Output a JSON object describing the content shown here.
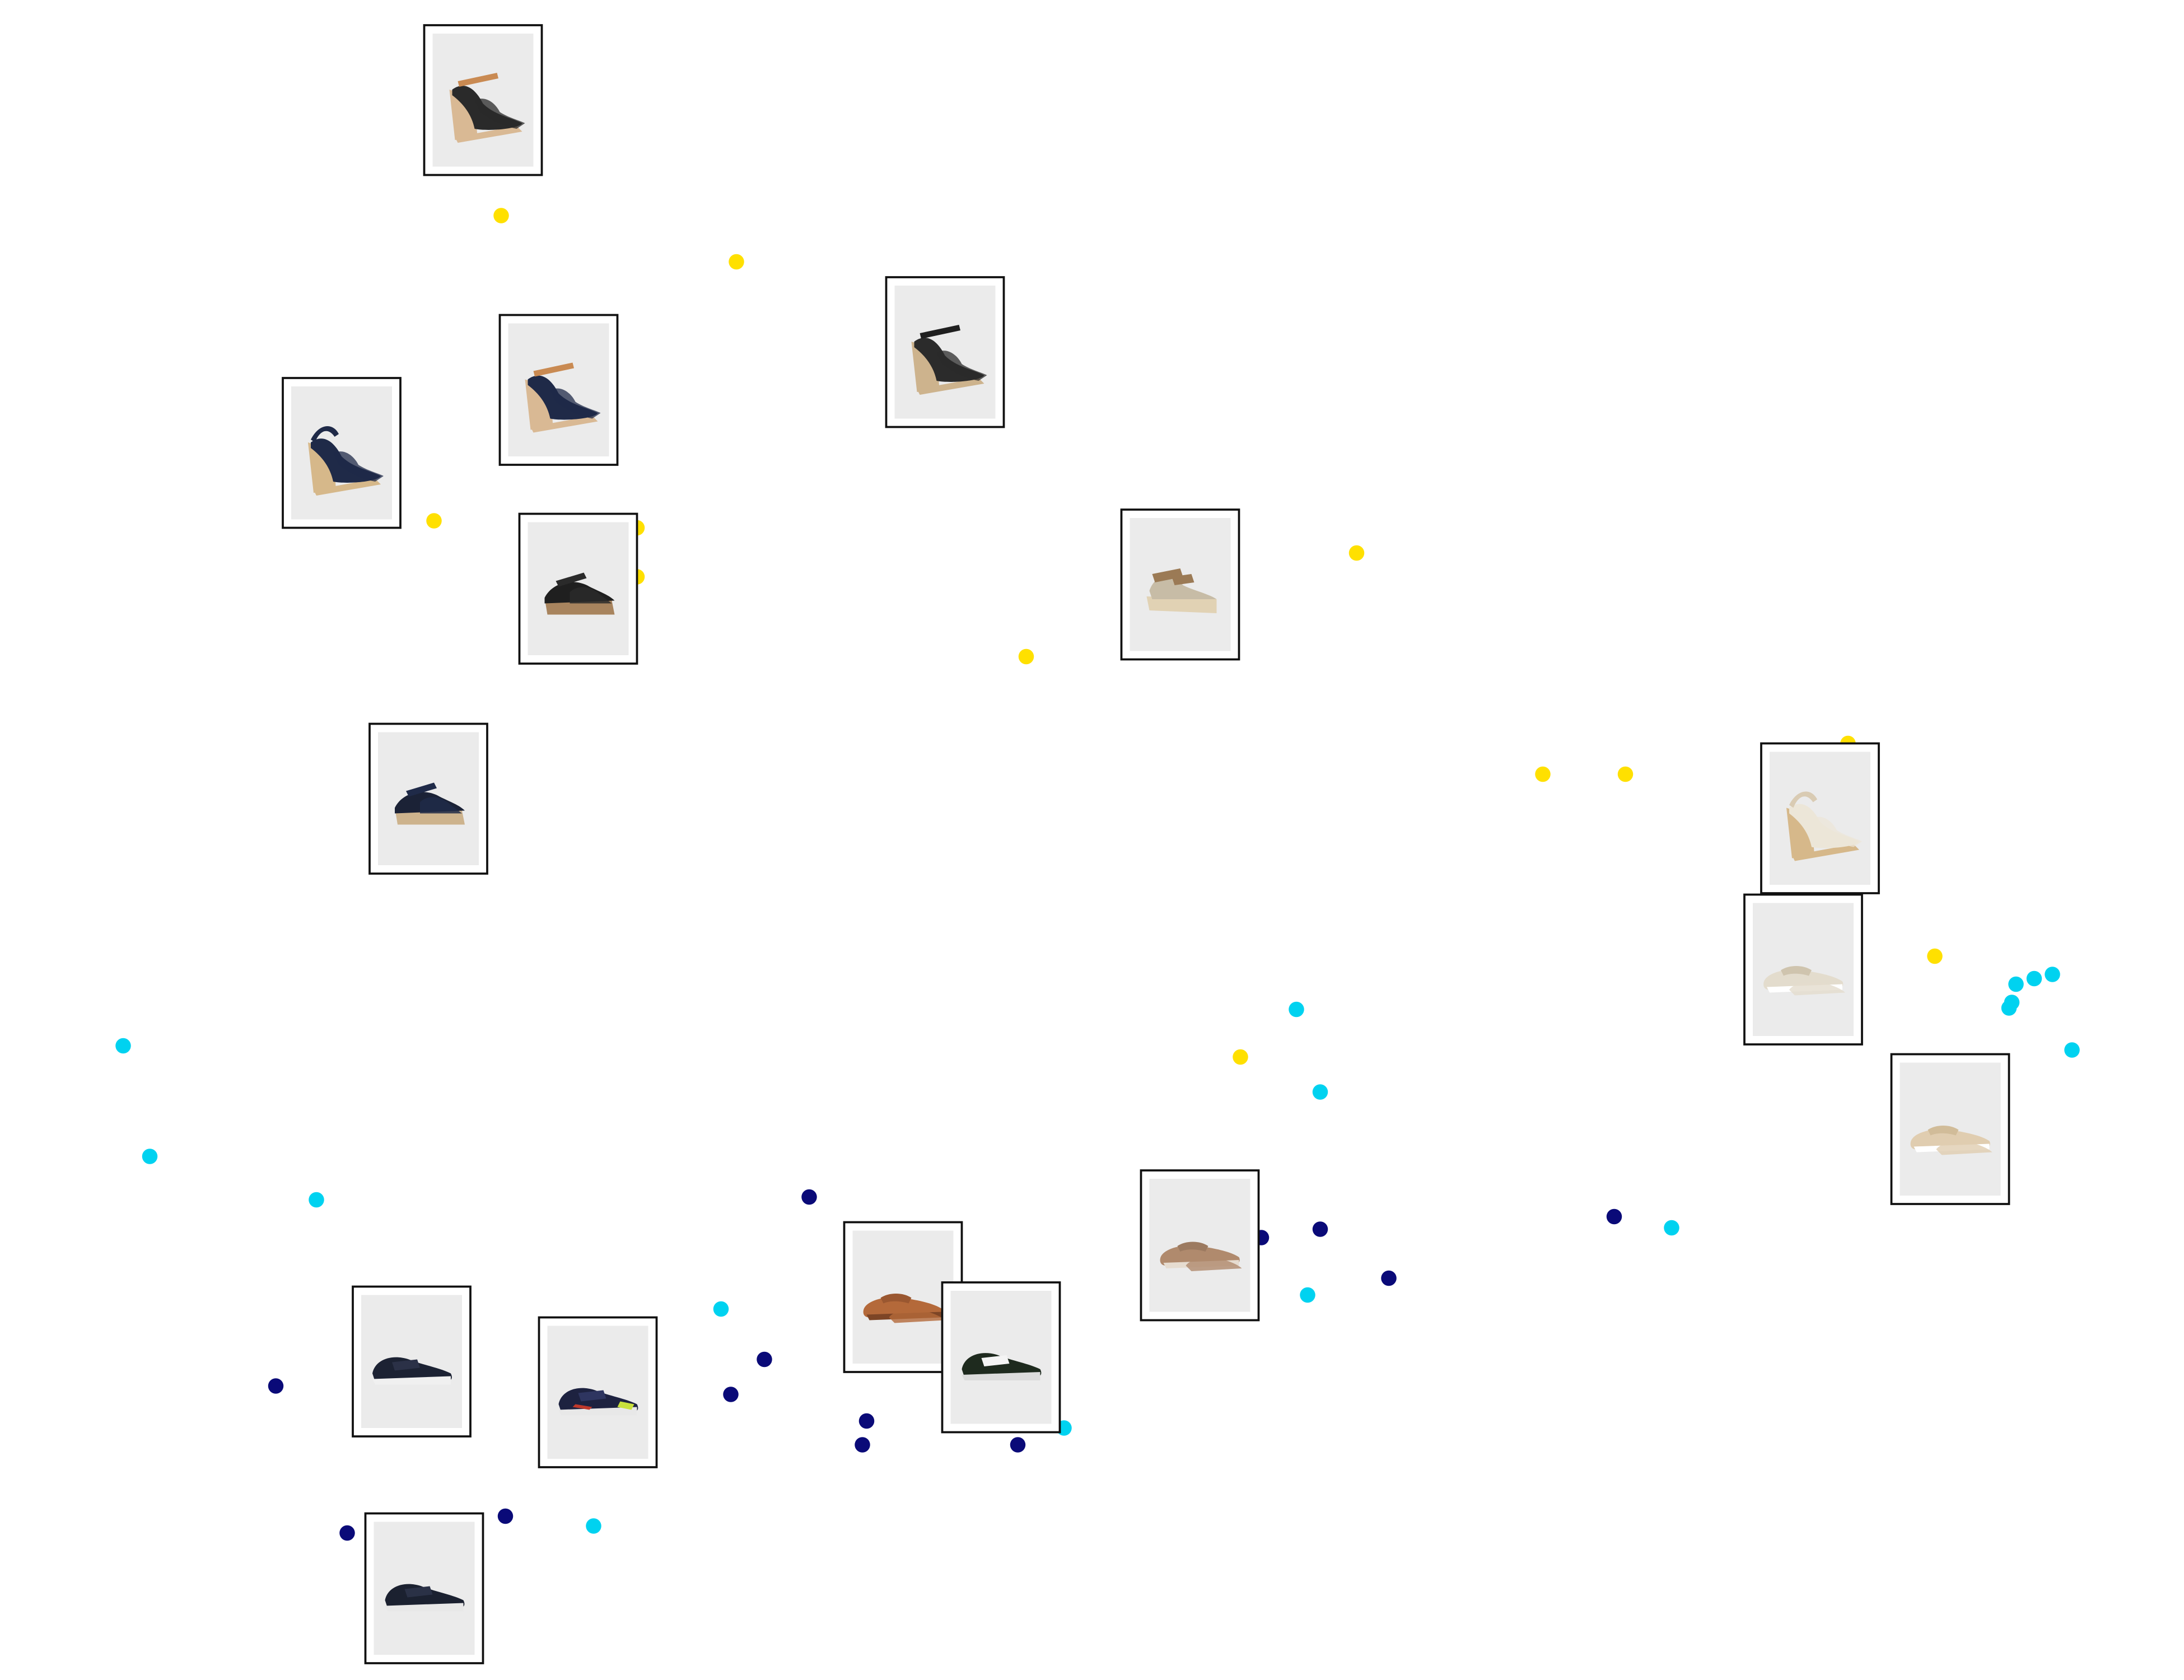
{
  "chart_data": {
    "type": "scatter",
    "title": "",
    "xlabel": "",
    "ylabel": "",
    "xlim": [
      0,
      1560
    ],
    "ylim": [
      1200,
      0
    ],
    "grid": false,
    "axes_visible": false,
    "legend": "none",
    "series": [
      {
        "color": "#ffe000",
        "points": [
          [
            358,
            154
          ],
          [
            526,
            187
          ],
          [
            310,
            372
          ],
          [
            455,
            377
          ],
          [
            455,
            412
          ],
          [
            733,
            469
          ],
          [
            969,
            395
          ],
          [
            1102,
            553
          ],
          [
            1161,
            553
          ],
          [
            1320,
            531
          ],
          [
            1382,
            683
          ],
          [
            886,
            755
          ]
        ]
      },
      {
        "color": "#00d2f0",
        "points": [
          [
            88,
            747
          ],
          [
            107,
            826
          ],
          [
            226,
            857
          ],
          [
            926,
            721
          ],
          [
            943,
            780
          ],
          [
            515,
            935
          ],
          [
            934,
            925
          ],
          [
            1194,
            877
          ],
          [
            760,
            1020
          ],
          [
            424,
            1090
          ],
          [
            1440,
            703
          ],
          [
            1453,
            699
          ],
          [
            1466,
            696
          ],
          [
            1437,
            716
          ],
          [
            1435,
            720
          ],
          [
            1480,
            750
          ]
        ]
      },
      {
        "color": "#0a0a78",
        "points": [
          [
            578,
            855
          ],
          [
            901,
            884
          ],
          [
            943,
            878
          ],
          [
            992,
            913
          ],
          [
            1153,
            869
          ],
          [
            197,
            990
          ],
          [
            546,
            971
          ],
          [
            522,
            996
          ],
          [
            619,
            1015
          ],
          [
            616,
            1032
          ],
          [
            727,
            1032
          ],
          [
            248,
            1095
          ],
          [
            361,
            1083
          ]
        ]
      }
    ],
    "thumbnails": [
      {
        "x": 345,
        "y": 71,
        "icon": "wedge-sandal-icon",
        "colors": [
          "#2a2a2a",
          "#c98a52",
          "#d9b994"
        ]
      },
      {
        "x": 675,
        "y": 251,
        "icon": "wedge-sandal-icon",
        "colors": [
          "#2b2b2b",
          "#1f1f1f",
          "#cdb38d"
        ]
      },
      {
        "x": 399,
        "y": 278,
        "icon": "wedge-sandal-icon",
        "colors": [
          "#1f2a48",
          "#c98a52",
          "#d9b994"
        ]
      },
      {
        "x": 244,
        "y": 323,
        "icon": "wedge-slingback-icon",
        "colors": [
          "#1f2a48",
          "#1f2a48",
          "#d6b88a"
        ]
      },
      {
        "x": 413,
        "y": 420,
        "icon": "wedge-espadrille-icon",
        "colors": [
          "#1f1f1f",
          "#2a2a2a",
          "#a8845e"
        ]
      },
      {
        "x": 843,
        "y": 417,
        "icon": "espadrille-sandal-icon",
        "colors": [
          "#9b7a55",
          "#c7bca6",
          "#e1d2b4"
        ]
      },
      {
        "x": 306,
        "y": 570,
        "icon": "wedge-espadrille-icon",
        "colors": [
          "#1b2236",
          "#1f2a48",
          "#cdb38d"
        ]
      },
      {
        "x": 1300,
        "y": 584,
        "icon": "wedge-slingback-icon",
        "colors": [
          "#ece6d8",
          "#d9cbb3",
          "#d6b88a"
        ]
      },
      {
        "x": 1288,
        "y": 692,
        "icon": "slip-on-icon",
        "colors": [
          "#e3dccd",
          "#cfc4ae",
          "#ffffff"
        ]
      },
      {
        "x": 1393,
        "y": 806,
        "icon": "slip-on-icon",
        "colors": [
          "#e0cdb0",
          "#d1bc99",
          "#ffffff"
        ]
      },
      {
        "x": 857,
        "y": 889,
        "icon": "loafer-icon",
        "colors": [
          "#b08a6d",
          "#9c7a60",
          "#e6dcd0"
        ]
      },
      {
        "x": 645,
        "y": 926,
        "icon": "loafer-icon",
        "colors": [
          "#b4693a",
          "#9a5730",
          "#7d4526"
        ]
      },
      {
        "x": 715,
        "y": 969,
        "icon": "sneaker-icon",
        "colors": [
          "#1e2a1e",
          "#f4f4f4",
          "#dcdcdc"
        ]
      },
      {
        "x": 294,
        "y": 972,
        "icon": "sneaker-icon",
        "colors": [
          "#1c2233",
          "#2b3147",
          "#f0f0f0"
        ]
      },
      {
        "x": 427,
        "y": 994,
        "icon": "running-sneaker-icon",
        "colors": [
          "#1d2240",
          "#2e3560",
          "#c8e03c"
        ]
      },
      {
        "x": 303,
        "y": 1134,
        "icon": "sneaker-icon",
        "colors": [
          "#1b2130",
          "#2a3146",
          "#e8e8e8"
        ]
      }
    ]
  }
}
